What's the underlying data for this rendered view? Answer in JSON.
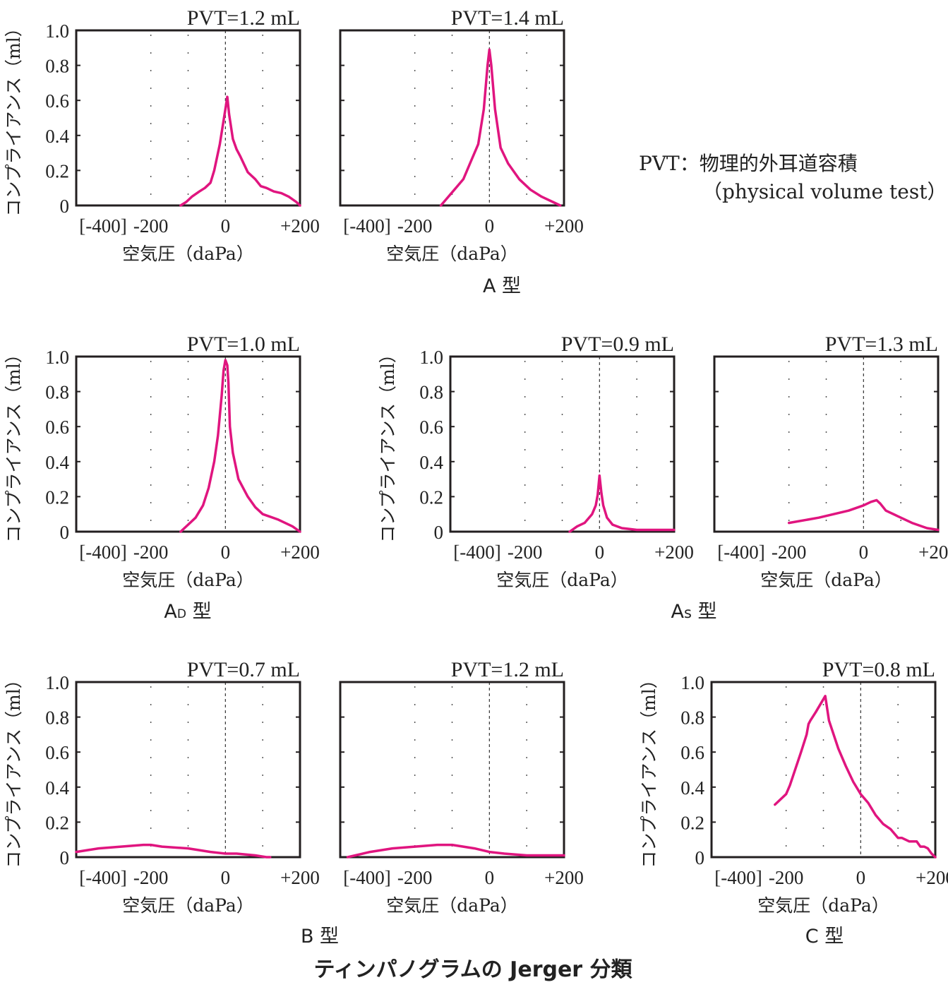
{
  "figure_caption": "ティンパノグラムの Jerger 分類",
  "note": {
    "line1": "PVT：物理的外耳道容積",
    "line2": "（physical volume test）"
  },
  "group_labels": [
    {
      "main": "A",
      "sub": "",
      "suffix": " 型"
    },
    {
      "main": "A",
      "sub": "D",
      "suffix": " 型"
    },
    {
      "main": "A",
      "sub": "s",
      "suffix": " 型"
    },
    {
      "main": "B",
      "sub": "",
      "suffix": " 型"
    },
    {
      "main": "C",
      "sub": "",
      "suffix": " 型"
    }
  ],
  "colors": {
    "curve": "#e0157f",
    "axis": "#231f20",
    "background": "#ffffff"
  },
  "axes": {
    "xlabel": "空気圧（daPa）",
    "ylabel": "コンプライアンス（ml）",
    "x_ticks": [
      {
        "value": -400,
        "label": "[-400]"
      },
      {
        "value": -200,
        "label": "-200"
      },
      {
        "value": 0,
        "label": "0"
      },
      {
        "value": 200,
        "label": "+200"
      }
    ],
    "y_ticks": [
      "1.0",
      "0.8",
      "0.6",
      "0.4",
      "0.2",
      "0"
    ],
    "xlim": [
      -400,
      200
    ],
    "ylim": [
      0,
      1.0
    ]
  },
  "chart_data": [
    {
      "type": "line",
      "group": "A",
      "title": "PVT=1.2 mL",
      "show_y_axis": true,
      "x": [
        -120,
        -105,
        -90,
        -70,
        -55,
        -40,
        -30,
        -15,
        0,
        5,
        10,
        20,
        30,
        40,
        60,
        80,
        95,
        110,
        130,
        150,
        170,
        190,
        200
      ],
      "y": [
        0.0,
        0.02,
        0.05,
        0.08,
        0.1,
        0.13,
        0.2,
        0.35,
        0.55,
        0.62,
        0.52,
        0.38,
        0.32,
        0.28,
        0.19,
        0.15,
        0.11,
        0.1,
        0.08,
        0.07,
        0.05,
        0.02,
        0.0
      ],
      "dashed_zero": true
    },
    {
      "type": "line",
      "group": "A",
      "title": "PVT=1.4 mL",
      "show_y_axis": false,
      "x": [
        -130,
        -110,
        -90,
        -70,
        -50,
        -30,
        -15,
        -5,
        0,
        5,
        15,
        30,
        50,
        80,
        110,
        140,
        170,
        190
      ],
      "y": [
        0.0,
        0.05,
        0.1,
        0.15,
        0.25,
        0.35,
        0.55,
        0.8,
        0.89,
        0.8,
        0.55,
        0.33,
        0.24,
        0.15,
        0.09,
        0.05,
        0.02,
        0.0
      ],
      "dashed_zero": true
    },
    {
      "type": "line",
      "group": "AD",
      "title": "PVT=1.0 mL",
      "show_y_axis": true,
      "x": [
        -120,
        -100,
        -80,
        -60,
        -45,
        -30,
        -20,
        -10,
        -5,
        0,
        5,
        8,
        12,
        20,
        35,
        60,
        80,
        100,
        140,
        180,
        200
      ],
      "y": [
        0.0,
        0.04,
        0.08,
        0.15,
        0.25,
        0.4,
        0.55,
        0.78,
        0.92,
        0.98,
        0.95,
        0.85,
        0.6,
        0.45,
        0.3,
        0.2,
        0.14,
        0.1,
        0.07,
        0.03,
        0.0
      ],
      "dashed_zero": true
    },
    {
      "type": "line",
      "group": "As",
      "title": "PVT=0.9 mL",
      "show_y_axis": true,
      "x": [
        -80,
        -60,
        -40,
        -20,
        -10,
        -5,
        0,
        5,
        10,
        20,
        35,
        60,
        100,
        140,
        200
      ],
      "y": [
        0.0,
        0.03,
        0.05,
        0.1,
        0.15,
        0.21,
        0.32,
        0.22,
        0.15,
        0.08,
        0.04,
        0.02,
        0.01,
        0.01,
        0.01
      ],
      "dashed_zero": true
    },
    {
      "type": "line",
      "group": "As",
      "title": "PVT=1.3 mL",
      "show_y_axis": false,
      "x": [
        -200,
        -120,
        -40,
        0,
        20,
        35,
        45,
        60,
        90,
        130,
        170,
        200
      ],
      "y": [
        0.05,
        0.08,
        0.12,
        0.15,
        0.17,
        0.18,
        0.16,
        0.12,
        0.09,
        0.05,
        0.02,
        0.01
      ],
      "dashed_zero": true
    },
    {
      "type": "line",
      "group": "B",
      "title": "PVT=0.7 mL",
      "show_y_axis": true,
      "x": [
        -400,
        -340,
        -280,
        -220,
        -200,
        -170,
        -100,
        -40,
        0,
        30,
        80,
        110,
        120
      ],
      "y": [
        0.03,
        0.05,
        0.06,
        0.07,
        0.07,
        0.06,
        0.05,
        0.03,
        0.02,
        0.02,
        0.01,
        0.0,
        0.0
      ],
      "dashed_zero": true
    },
    {
      "type": "line",
      "group": "B",
      "title": "PVT=1.2 mL",
      "show_y_axis": false,
      "x": [
        -380,
        -320,
        -260,
        -200,
        -140,
        -100,
        -40,
        0,
        40,
        100,
        160,
        200
      ],
      "y": [
        0.0,
        0.03,
        0.05,
        0.06,
        0.07,
        0.07,
        0.05,
        0.03,
        0.02,
        0.01,
        0.01,
        0.01
      ],
      "dashed_zero": true
    },
    {
      "type": "line",
      "group": "C",
      "title": "PVT=0.8 mL",
      "show_y_axis": true,
      "x": [
        -230,
        -200,
        -190,
        -160,
        -145,
        -140,
        -135,
        -120,
        -95,
        -85,
        -60,
        -40,
        -20,
        0,
        20,
        40,
        60,
        80,
        100,
        110,
        130,
        150,
        160,
        170,
        180,
        190,
        200
      ],
      "y": [
        0.3,
        0.36,
        0.41,
        0.6,
        0.7,
        0.76,
        0.78,
        0.83,
        0.92,
        0.78,
        0.62,
        0.52,
        0.43,
        0.36,
        0.31,
        0.24,
        0.19,
        0.16,
        0.11,
        0.11,
        0.09,
        0.09,
        0.06,
        0.06,
        0.05,
        0.02,
        0.0
      ],
      "dashed_zero": true
    }
  ]
}
